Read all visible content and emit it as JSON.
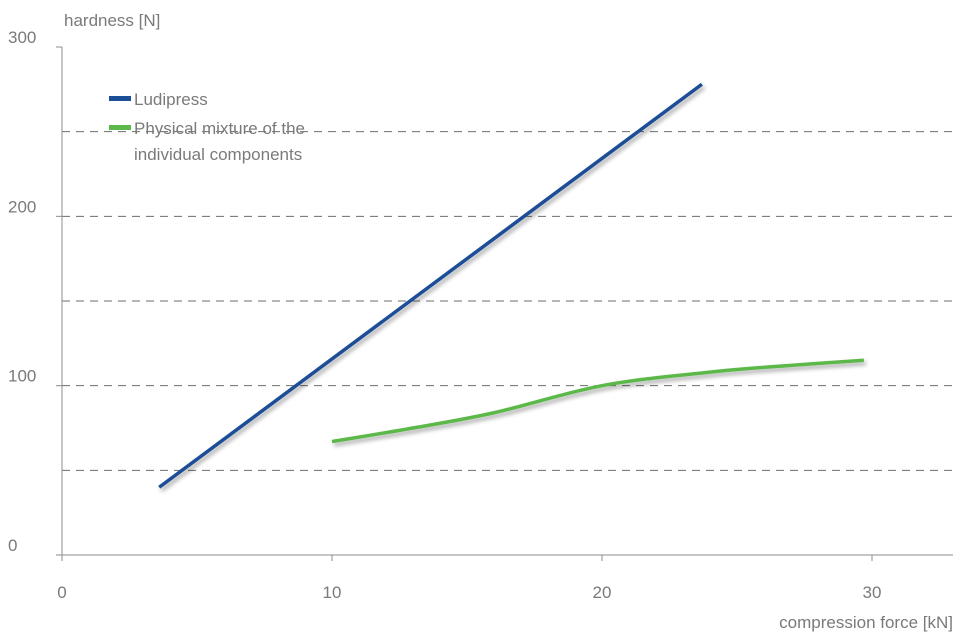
{
  "chart_data": {
    "type": "line",
    "xlabel": "compression force [kN]",
    "ylabel": "hardness [N]",
    "xlim": [
      0,
      33
    ],
    "ylim": [
      0,
      300
    ],
    "x_ticks": [
      "0",
      "10",
      "20",
      "30"
    ],
    "y_ticks": [
      "0",
      "100",
      "200",
      "300"
    ],
    "grid": "horizontal dashed at every 50 N",
    "legend_position": "top-left",
    "series": [
      {
        "name": "Ludipress",
        "color": "#1a4e96",
        "points": [
          [
            3.6,
            40
          ],
          [
            23.7,
            278
          ]
        ]
      },
      {
        "name": "Physical mixture of the individual components",
        "legend_lines": [
          "Physical mixture of the",
          "individual components"
        ],
        "color": "#5cb849",
        "points": [
          [
            10,
            67
          ],
          [
            13,
            75
          ],
          [
            16,
            84
          ],
          [
            20,
            100
          ],
          [
            24,
            108
          ],
          [
            27,
            112
          ],
          [
            29.7,
            115
          ]
        ]
      }
    ]
  }
}
